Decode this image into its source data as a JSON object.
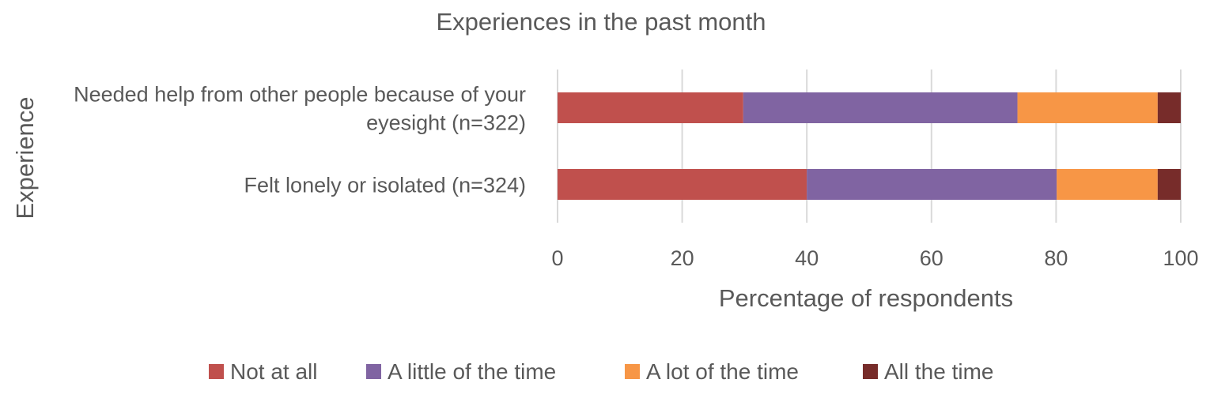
{
  "chart_data": {
    "type": "bar",
    "orientation": "horizontal",
    "stacked": true,
    "title": "Experiences in the past month",
    "xlabel": "Percentage of respondents",
    "ylabel": "Experience",
    "xlim": [
      0,
      100
    ],
    "xticks": [
      0,
      20,
      40,
      60,
      80,
      100
    ],
    "grid": true,
    "legend_position": "bottom",
    "categories": [
      [
        "Needed help from other people because of your",
        "eyesight (n=322)"
      ],
      [
        "Felt lonely or isolated (n=324)"
      ]
    ],
    "series": [
      {
        "name": "Not at all",
        "color": "#c0504d",
        "values": [
          29.8,
          40.0
        ]
      },
      {
        "name": "A little of the time",
        "color": "#8064a2",
        "values": [
          44.0,
          40.1
        ]
      },
      {
        "name": "A lot of the time",
        "color": "#f79646",
        "values": [
          22.5,
          16.2
        ]
      },
      {
        "name": "All the time",
        "color": "#772c2a",
        "values": [
          3.7,
          3.7
        ]
      }
    ]
  }
}
